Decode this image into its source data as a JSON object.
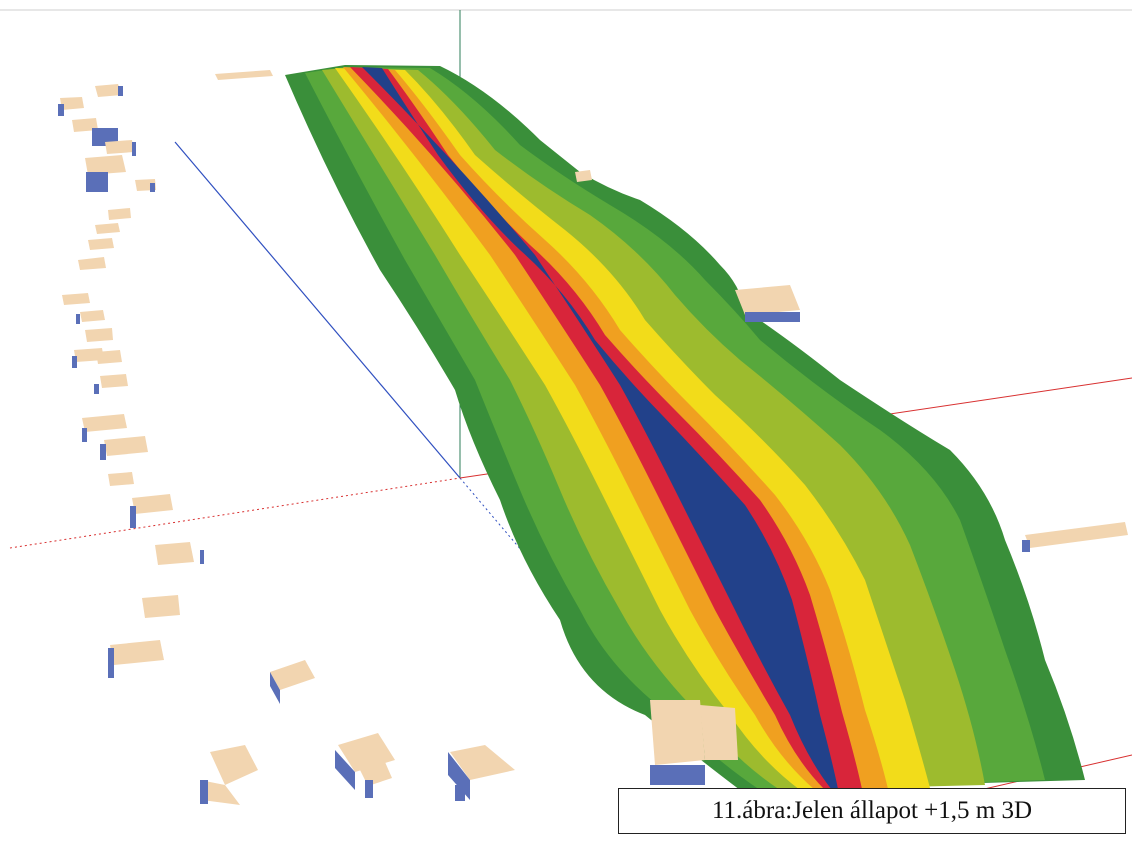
{
  "figure": {
    "caption": "11.ábra:Jelen állapot +1,5 m 3D",
    "content": "3D noise contour map along a road corridor with surrounding buildings",
    "colors": {
      "outer_green": "#3a8f3a",
      "green": "#58a83c",
      "yellow_green": "#9dbb2e",
      "yellow": "#f2dc1a",
      "orange": "#f0a020",
      "red": "#d8253a",
      "blue_core": "#22418a",
      "building_roof": "#f2d5b0",
      "building_wall": "#5a6fb8",
      "axis_red": "#d83030",
      "axis_green": "#2e7d5a",
      "axis_blue": "#3050c0"
    }
  }
}
